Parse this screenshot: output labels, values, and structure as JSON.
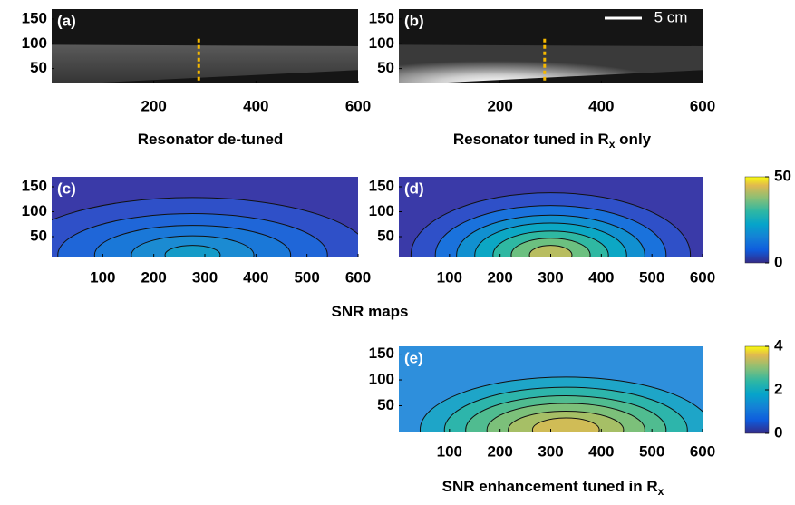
{
  "panels": [
    {
      "label": "(a)",
      "xlim": [
        0,
        600
      ],
      "xticks": [
        200,
        400,
        600
      ],
      "ylim": [
        20,
        170
      ],
      "yticks": [
        50,
        100,
        150
      ]
    },
    {
      "label": "(b)",
      "xlim": [
        0,
        600
      ],
      "xticks": [
        200,
        400,
        600
      ],
      "ylim": [
        20,
        170
      ],
      "yticks": [
        50,
        100,
        150
      ]
    },
    {
      "label": "(c)",
      "xlim": [
        0,
        600
      ],
      "xticks": [
        100,
        200,
        300,
        400,
        500,
        600
      ],
      "ylim": [
        10,
        170
      ],
      "yticks": [
        50,
        100,
        150
      ]
    },
    {
      "label": "(d)",
      "xlim": [
        0,
        600
      ],
      "xticks": [
        100,
        200,
        300,
        400,
        500,
        600
      ],
      "ylim": [
        10,
        170
      ],
      "yticks": [
        50,
        100,
        150
      ]
    },
    {
      "label": "(e)",
      "xlim": [
        0,
        600
      ],
      "xticks": [
        100,
        200,
        300,
        400,
        500,
        600
      ],
      "ylim": [
        0,
        165
      ],
      "yticks": [
        50,
        100,
        150
      ]
    }
  ],
  "scale_bar": "5 cm",
  "colorbars": [
    {
      "ylim": [
        0,
        50
      ],
      "yticks": [
        0,
        50
      ]
    },
    {
      "ylim": [
        0,
        4
      ],
      "yticks": [
        0,
        2,
        4
      ]
    }
  ],
  "captions": [
    [
      "Resonator de-tuned"
    ],
    [
      "Resonator tuned in R",
      "x",
      " only"
    ],
    [
      "SNR maps"
    ],
    [
      "SNR enhancement tuned in R",
      "x"
    ]
  ]
}
